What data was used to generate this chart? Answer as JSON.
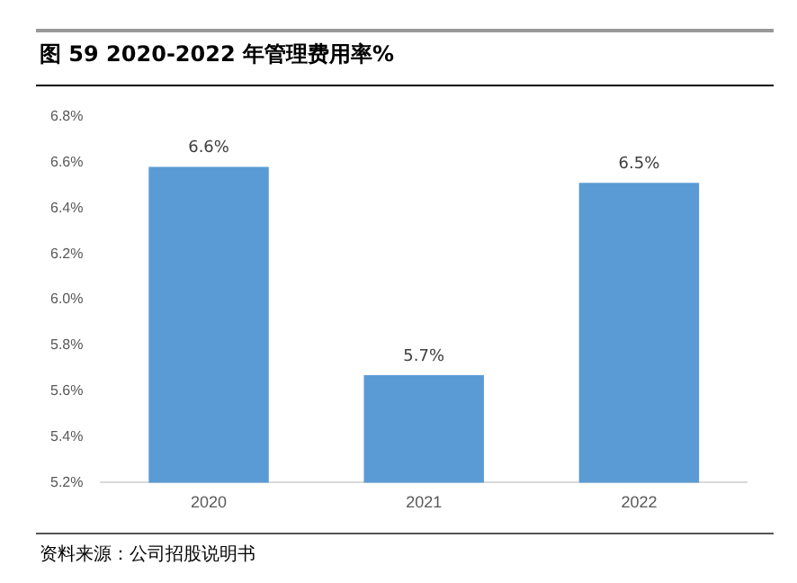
{
  "chart_data": {
    "type": "bar",
    "title": "图 59 2020-2022 年管理费用率%",
    "categories": [
      "2020",
      "2021",
      "2022"
    ],
    "values": [
      6.58,
      5.67,
      6.51
    ],
    "value_labels": [
      "6.6%",
      "5.7%",
      "6.5%"
    ],
    "color": "#5b9bd5",
    "ylim": [
      5.2,
      6.8
    ],
    "yticks": [
      {
        "value": 5.2,
        "label": "5.2%"
      },
      {
        "value": 5.4,
        "label": "5.4%"
      },
      {
        "value": 5.6,
        "label": "5.6%"
      },
      {
        "value": 5.8,
        "label": "5.8%"
      },
      {
        "value": 6.0,
        "label": "6.0%"
      },
      {
        "value": 6.2,
        "label": "6.2%"
      },
      {
        "value": 6.4,
        "label": "6.4%"
      },
      {
        "value": 6.6,
        "label": "6.6%"
      },
      {
        "value": 6.8,
        "label": "6.8%"
      }
    ],
    "grid": false,
    "legend": false,
    "annotations": [
      "资料来源：公司招股说明书"
    ]
  }
}
